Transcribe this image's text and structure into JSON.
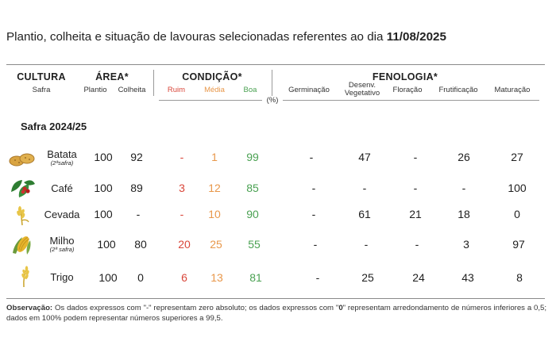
{
  "title": {
    "text": "Plantio, colheita e situação de lavouras selecionadas referentes ao dia",
    "date": "11/08/2025"
  },
  "headers": {
    "cultura": "CULTURA",
    "safra": "Safra",
    "area": "ÁREA*",
    "plantio": "Plantio",
    "colheita": "Colheita",
    "condicao": "CONDIÇÃO*",
    "ruim": "Ruim",
    "media": "Média",
    "boa": "Boa",
    "fenologia": "FENOLOGIA*",
    "germinacao": "Germinação",
    "desenv_1": "Desenv.",
    "desenv_2": "Vegetativo",
    "floracao": "Floração",
    "frutificacao": "Frutificação",
    "maturacao": "Maturação",
    "unit": "(%)"
  },
  "colors": {
    "ruim": "#d9463a",
    "media": "#e8974a",
    "boa": "#4aa152"
  },
  "section": "Safra 2024/25",
  "rows": [
    {
      "crop": "Batata",
      "note": "(2ªsafra)",
      "icon": "potato-icon",
      "plantio": "100",
      "colheita": "92",
      "ruim": "-",
      "media": "1",
      "boa": "99",
      "germinacao": "-",
      "desenv": "47",
      "floracao": "-",
      "frutificacao": "26",
      "maturacao": "27"
    },
    {
      "crop": "Café",
      "note": "",
      "icon": "coffee-icon",
      "plantio": "100",
      "colheita": "89",
      "ruim": "3",
      "media": "12",
      "boa": "85",
      "germinacao": "-",
      "desenv": "-",
      "floracao": "-",
      "frutificacao": "-",
      "maturacao": "100"
    },
    {
      "crop": "Cevada",
      "note": "",
      "icon": "barley-icon",
      "plantio": "100",
      "colheita": "-",
      "ruim": "-",
      "media": "10",
      "boa": "90",
      "germinacao": "-",
      "desenv": "61",
      "floracao": "21",
      "frutificacao": "18",
      "maturacao": "0"
    },
    {
      "crop": "Milho",
      "note": "(2ª safra)",
      "icon": "corn-icon",
      "plantio": "100",
      "colheita": "80",
      "ruim": "20",
      "media": "25",
      "boa": "55",
      "germinacao": "-",
      "desenv": "-",
      "floracao": "-",
      "frutificacao": "3",
      "maturacao": "97"
    },
    {
      "crop": "Trigo",
      "note": "",
      "icon": "wheat-icon",
      "plantio": "100",
      "colheita": "0",
      "ruim": "6",
      "media": "13",
      "boa": "81",
      "germinacao": "-",
      "desenv": "25",
      "floracao": "24",
      "frutificacao": "43",
      "maturacao": "8"
    }
  ],
  "note": {
    "label": "Observação:",
    "text1": " Os dados expressos com \"-\" representam zero absoluto; os dados expressos com \"",
    "zero": "0",
    "text2": "\" representam arredondamento de números inferiores a 0,5; dados em 100% podem representar números superiores a 99,5."
  }
}
